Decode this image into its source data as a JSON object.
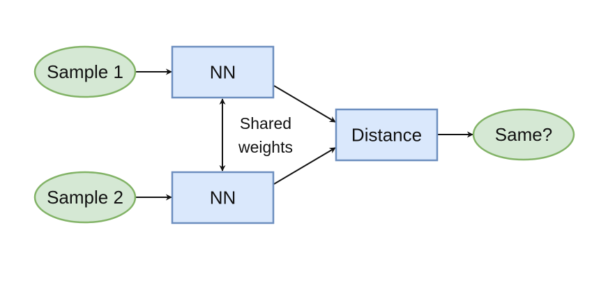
{
  "nodes": {
    "sample1": "Sample 1",
    "sample2": "Sample 2",
    "nn_top": "NN",
    "nn_bottom": "NN",
    "distance": "Distance",
    "same": "Same?"
  },
  "annotation": {
    "line1": "Shared",
    "line2": "weights"
  },
  "colors": {
    "ellipse_fill": "#d5e8d4",
    "ellipse_stroke": "#82b366",
    "box_fill": "#dae8fc",
    "box_stroke": "#6c8ebf",
    "edge": "#111111"
  }
}
